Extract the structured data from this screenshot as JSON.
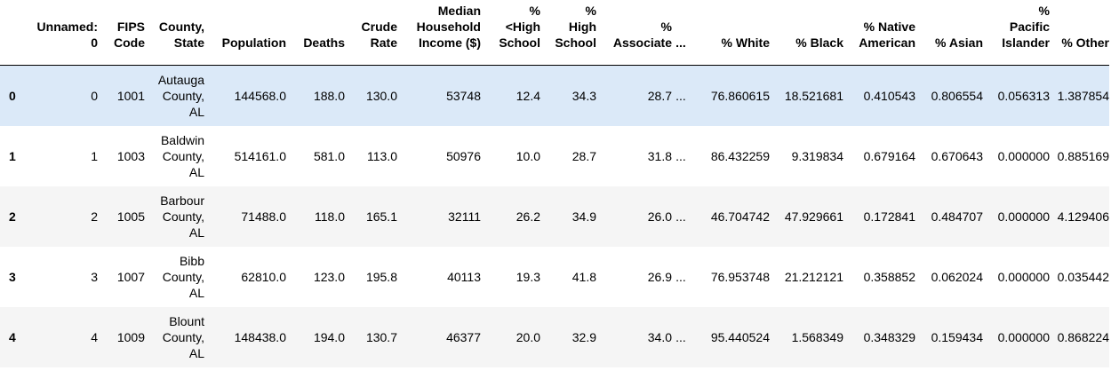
{
  "table": {
    "header": {
      "index": "",
      "unnamed": "Unnamed:\n0",
      "fips": "FIPS\nCode",
      "county": "County,\nState",
      "population": "Population",
      "deaths": "Deaths",
      "crude_rate": "Crude\nRate",
      "median_income": "Median\nHousehold\nIncome ($)",
      "lt_high_school": "%\n<High\nSchool",
      "high_school": "%\nHigh\nSchool",
      "associate": "%\nAssociate",
      "ellipsis": "...",
      "white": "% White",
      "black": "% Black",
      "native_american": "% Native\nAmerican",
      "asian": "% Asian",
      "pacific_islander": "%\nPacific\nIslander",
      "other": "% Other"
    },
    "rows": [
      {
        "index": "0",
        "unnamed": "0",
        "fips": "1001",
        "county": "Autauga\nCounty,\nAL",
        "population": "144568.0",
        "deaths": "188.0",
        "crude_rate": "130.0",
        "median_income": "53748",
        "lt_high_school": "12.4",
        "high_school": "34.3",
        "associate": "28.7",
        "ellipsis": "...",
        "white": "76.860615",
        "black": "18.521681",
        "native_american": "0.410543",
        "asian": "0.806554",
        "pacific_islander": "0.056313",
        "other": "1.387854"
      },
      {
        "index": "1",
        "unnamed": "1",
        "fips": "1003",
        "county": "Baldwin\nCounty,\nAL",
        "population": "514161.0",
        "deaths": "581.0",
        "crude_rate": "113.0",
        "median_income": "50976",
        "lt_high_school": "10.0",
        "high_school": "28.7",
        "associate": "31.8",
        "ellipsis": "...",
        "white": "86.432259",
        "black": "9.319834",
        "native_american": "0.679164",
        "asian": "0.670643",
        "pacific_islander": "0.000000",
        "other": "0.885169"
      },
      {
        "index": "2",
        "unnamed": "2",
        "fips": "1005",
        "county": "Barbour\nCounty,\nAL",
        "population": "71488.0",
        "deaths": "118.0",
        "crude_rate": "165.1",
        "median_income": "32111",
        "lt_high_school": "26.2",
        "high_school": "34.9",
        "associate": "26.0",
        "ellipsis": "...",
        "white": "46.704742",
        "black": "47.929661",
        "native_american": "0.172841",
        "asian": "0.484707",
        "pacific_islander": "0.000000",
        "other": "4.129406"
      },
      {
        "index": "3",
        "unnamed": "3",
        "fips": "1007",
        "county": "Bibb\nCounty,\nAL",
        "population": "62810.0",
        "deaths": "123.0",
        "crude_rate": "195.8",
        "median_income": "40113",
        "lt_high_school": "19.3",
        "high_school": "41.8",
        "associate": "26.9",
        "ellipsis": "...",
        "white": "76.953748",
        "black": "21.212121",
        "native_american": "0.358852",
        "asian": "0.062024",
        "pacific_islander": "0.000000",
        "other": "0.035442"
      },
      {
        "index": "4",
        "unnamed": "4",
        "fips": "1009",
        "county": "Blount\nCounty,\nAL",
        "population": "148438.0",
        "deaths": "194.0",
        "crude_rate": "130.7",
        "median_income": "46377",
        "lt_high_school": "20.0",
        "high_school": "32.9",
        "associate": "34.0",
        "ellipsis": "...",
        "white": "95.440524",
        "black": "1.568349",
        "native_american": "0.348329",
        "asian": "0.159434",
        "pacific_islander": "0.000000",
        "other": "0.868224"
      }
    ]
  },
  "colors": {
    "hover_row": "#dbe9f8",
    "stripe_row": "#f5f5f5",
    "header_border": "#000000"
  }
}
